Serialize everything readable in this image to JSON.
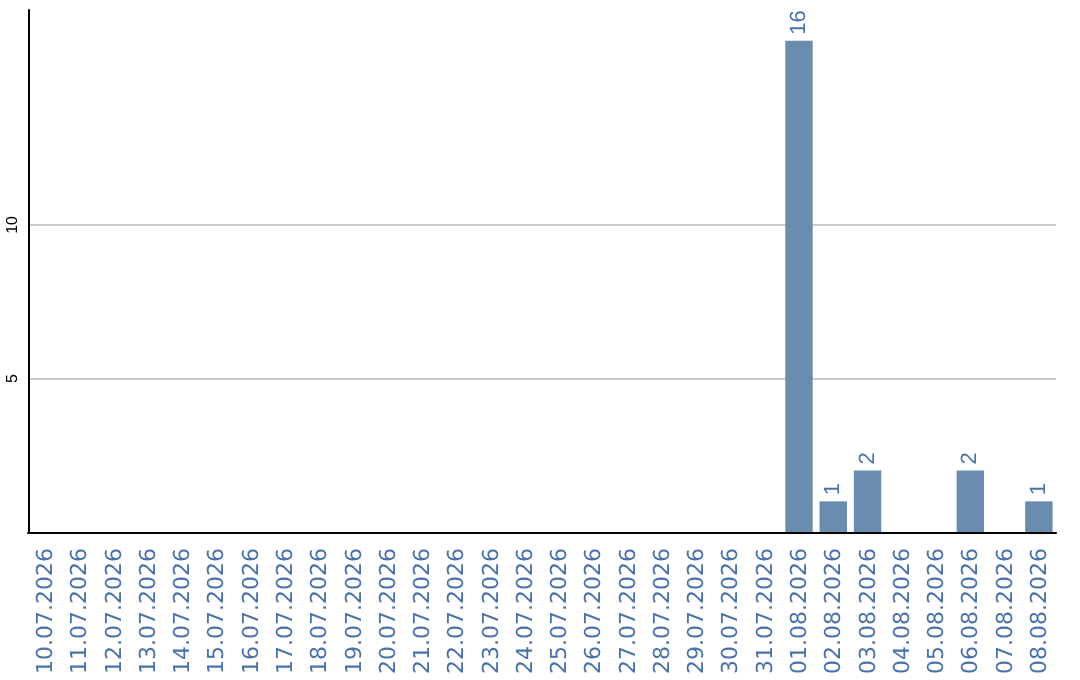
{
  "chart_data": {
    "type": "bar",
    "categories": [
      "10.07.2026",
      "11.07.2026",
      "12.07.2026",
      "13.07.2026",
      "14.07.2026",
      "15.07.2026",
      "16.07.2026",
      "17.07.2026",
      "18.07.2026",
      "19.07.2026",
      "20.07.2026",
      "21.07.2026",
      "22.07.2026",
      "23.07.2026",
      "24.07.2026",
      "25.07.2026",
      "26.07.2026",
      "27.07.2026",
      "28.07.2026",
      "29.07.2026",
      "30.07.2026",
      "31.07.2026",
      "01.08.2026",
      "02.08.2026",
      "03.08.2026",
      "04.08.2026",
      "05.08.2026",
      "06.08.2026",
      "07.08.2026",
      "08.08.2026"
    ],
    "values": [
      0,
      0,
      0,
      0,
      0,
      0,
      0,
      0,
      0,
      0,
      0,
      0,
      0,
      0,
      0,
      0,
      0,
      0,
      0,
      0,
      0,
      0,
      16,
      1,
      2,
      0,
      0,
      2,
      0,
      1
    ],
    "value_labels": [
      null,
      null,
      null,
      null,
      null,
      null,
      null,
      null,
      null,
      null,
      null,
      null,
      null,
      null,
      null,
      null,
      null,
      null,
      null,
      null,
      null,
      null,
      "16",
      "1",
      "2",
      null,
      null,
      "2",
      null,
      "1"
    ],
    "color": "#6a8caf",
    "ylim": [
      0,
      17
    ],
    "yticks": [
      5,
      10
    ],
    "grid": "y"
  }
}
